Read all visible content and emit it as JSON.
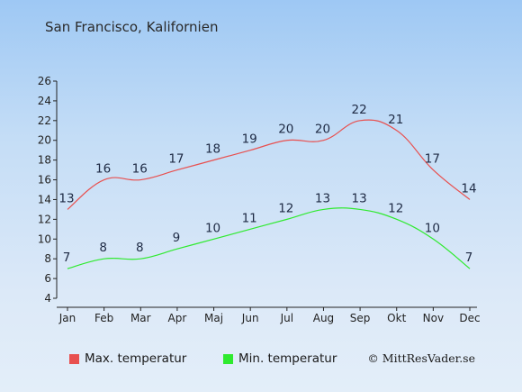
{
  "title": "San Francisco, Kalifornien",
  "copyright": "© MittResVader.se",
  "chart_data": {
    "type": "line",
    "categories": [
      "Jan",
      "Feb",
      "Mar",
      "Apr",
      "Maj",
      "Jun",
      "Jul",
      "Aug",
      "Sep",
      "Okt",
      "Nov",
      "Dec"
    ],
    "ylim": [
      4,
      26
    ],
    "yticks": [
      4,
      6,
      8,
      10,
      12,
      14,
      16,
      18,
      20,
      22,
      24,
      26
    ],
    "grid": false,
    "legend_position": "bottom",
    "series": [
      {
        "name": "Max. temperatur",
        "color": "#e8504f",
        "values": [
          13,
          16,
          16,
          17,
          18,
          19,
          20,
          20,
          22,
          21,
          17,
          14
        ]
      },
      {
        "name": "Min. temperatur",
        "color": "#2fea2f",
        "values": [
          7,
          8,
          8,
          9,
          10,
          11,
          12,
          13,
          13,
          12,
          10,
          7
        ]
      }
    ]
  }
}
